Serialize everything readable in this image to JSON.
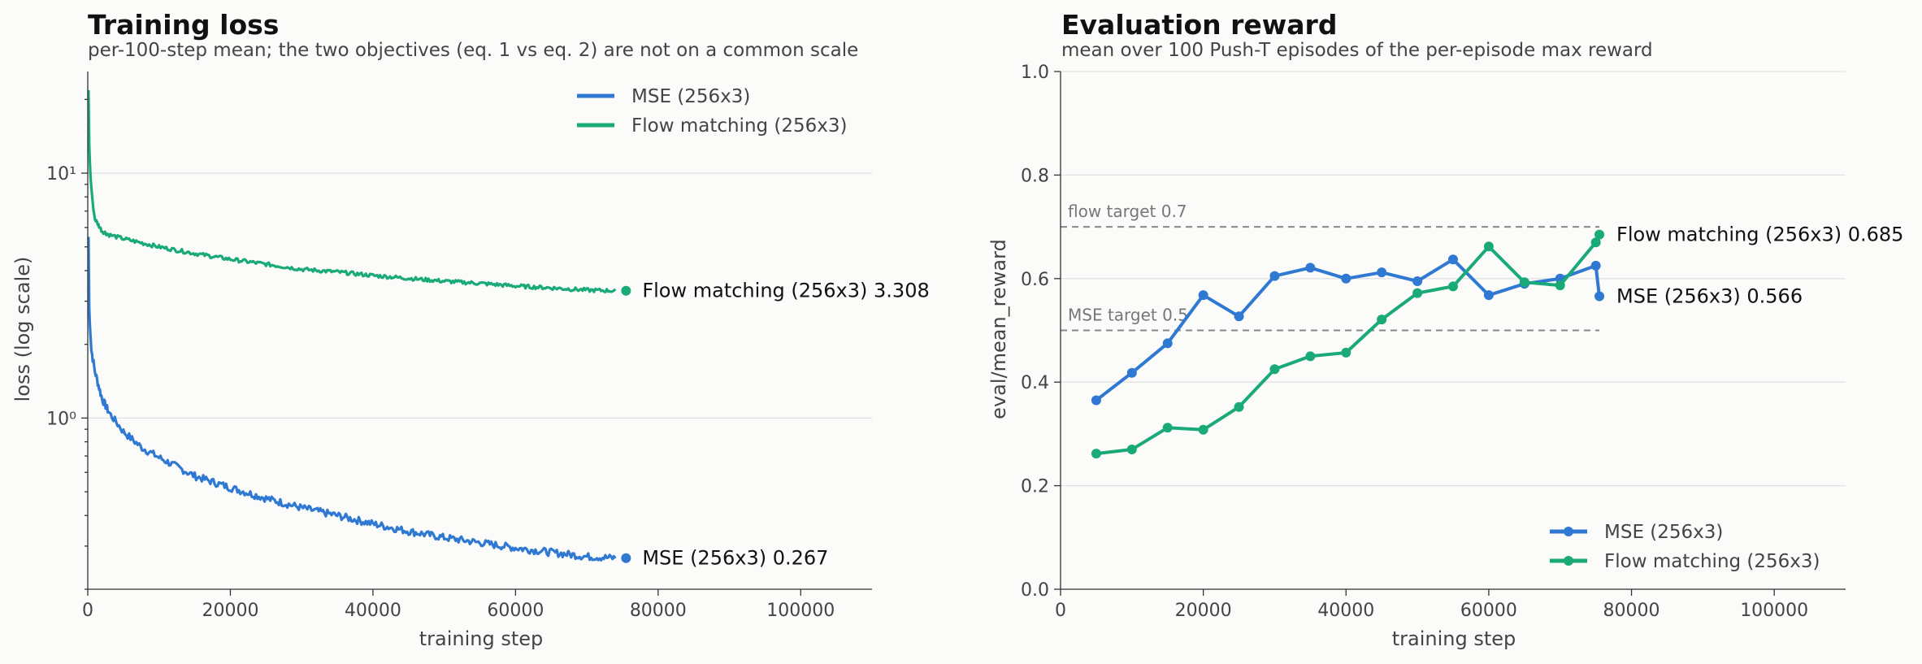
{
  "colors": {
    "mse": "#2f79d3",
    "flow": "#1aaa78",
    "background": "#fbfbf9"
  },
  "chart_data": [
    {
      "type": "line",
      "title": "Training loss",
      "subtitle": "per-100-step mean; the two objectives (eq. 1 vs eq. 2) are not on a common scale",
      "xlabel": "training step",
      "ylabel": "loss (log scale)",
      "yscale": "log",
      "xlim": [
        0,
        110000
      ],
      "ylim": [
        0.2,
        26
      ],
      "x_ticks": [
        0,
        20000,
        40000,
        60000,
        80000,
        100000
      ],
      "x_tick_labels": [
        "0",
        "20000",
        "40000",
        "60000",
        "80000",
        "100000"
      ],
      "y_ticks": [
        1,
        10
      ],
      "y_tick_labels": [
        "10⁰",
        "10¹"
      ],
      "grid": true,
      "legend_position": "top-right",
      "series": [
        {
          "name": "MSE (256x3)",
          "color": "#2f79d3",
          "end_label": "MSE (256x3)  0.267",
          "x": [
            100,
            200,
            500,
            1000,
            2000,
            3000,
            5000,
            7500,
            10000,
            15000,
            20000,
            25000,
            30000,
            35000,
            40000,
            45000,
            50000,
            55000,
            60000,
            65000,
            70000,
            74000
          ],
          "y": [
            5.5,
            2.8,
            1.9,
            1.55,
            1.2,
            1.05,
            0.88,
            0.76,
            0.69,
            0.58,
            0.52,
            0.47,
            0.43,
            0.4,
            0.37,
            0.345,
            0.325,
            0.31,
            0.295,
            0.283,
            0.272,
            0.268
          ]
        },
        {
          "name": "Flow matching (256x3)",
          "color": "#1aaa78",
          "end_label": "Flow matching (256x3)  3.308",
          "x": [
            100,
            200,
            400,
            700,
            1000,
            2000,
            3000,
            5000,
            10000,
            15000,
            20000,
            25000,
            30000,
            35000,
            40000,
            45000,
            50000,
            55000,
            60000,
            65000,
            70000,
            74000
          ],
          "y": [
            22,
            13,
            9.5,
            7.5,
            6.5,
            5.8,
            5.6,
            5.4,
            5.0,
            4.7,
            4.45,
            4.25,
            4.05,
            3.95,
            3.82,
            3.72,
            3.62,
            3.55,
            3.46,
            3.4,
            3.33,
            3.31
          ]
        }
      ]
    },
    {
      "type": "line",
      "title": "Evaluation reward",
      "subtitle": "mean over 100 Push-T episodes of the per-episode max reward",
      "xlabel": "training step",
      "ylabel": "eval/mean_reward",
      "xlim": [
        0,
        110000
      ],
      "ylim": [
        0,
        1
      ],
      "x_ticks": [
        0,
        20000,
        40000,
        60000,
        80000,
        100000
      ],
      "x_tick_labels": [
        "0",
        "20000",
        "40000",
        "60000",
        "80000",
        "100000"
      ],
      "y_ticks": [
        0,
        0.2,
        0.4,
        0.6,
        0.8,
        1.0
      ],
      "y_tick_labels": [
        "0.0",
        "0.2",
        "0.4",
        "0.6",
        "0.8",
        "1.0"
      ],
      "grid": true,
      "legend_position": "bottom-right",
      "reference_lines": [
        {
          "label": "flow target 0.7",
          "y": 0.7,
          "x_range": [
            0,
            75500
          ]
        },
        {
          "label": "MSE target 0.5",
          "y": 0.5,
          "x_range": [
            0,
            75500
          ]
        }
      ],
      "series": [
        {
          "name": "MSE (256x3)",
          "color": "#2f79d3",
          "end_label": "MSE (256x3)  0.566",
          "x": [
            5000,
            10000,
            15000,
            20000,
            25000,
            30000,
            35000,
            40000,
            45000,
            50000,
            55000,
            60000,
            65000,
            70000,
            75000
          ],
          "y": [
            0.365,
            0.418,
            0.475,
            0.568,
            0.527,
            0.605,
            0.621,
            0.6,
            0.612,
            0.595,
            0.637,
            0.568,
            0.59,
            0.6,
            0.625
          ],
          "final": {
            "x": 75500,
            "y": 0.566
          }
        },
        {
          "name": "Flow matching (256x3)",
          "color": "#1aaa78",
          "end_label": "Flow matching (256x3)  0.685",
          "x": [
            5000,
            10000,
            15000,
            20000,
            25000,
            30000,
            35000,
            40000,
            45000,
            50000,
            55000,
            60000,
            65000,
            70000,
            75000
          ],
          "y": [
            0.262,
            0.27,
            0.312,
            0.308,
            0.352,
            0.425,
            0.45,
            0.457,
            0.521,
            0.572,
            0.585,
            0.662,
            0.593,
            0.587,
            0.67
          ],
          "final": {
            "x": 75500,
            "y": 0.685
          }
        }
      ]
    }
  ]
}
